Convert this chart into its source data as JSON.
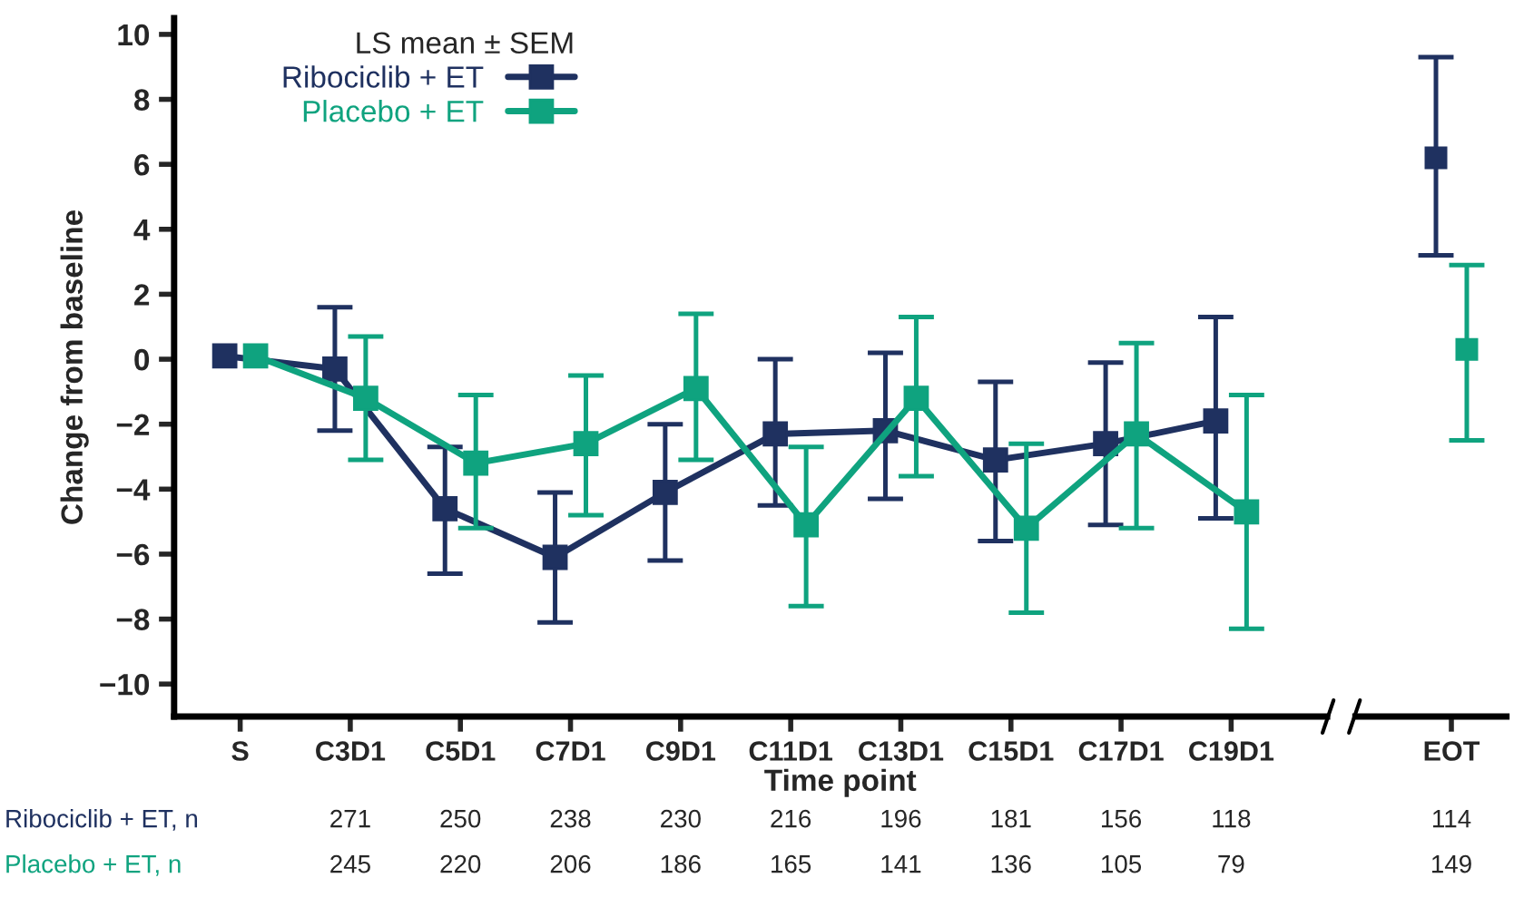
{
  "chart_data": {
    "type": "line",
    "ylabel": "Change from baseline",
    "xlabel": "Time point",
    "legend_title": "LS mean ± SEM",
    "categories": [
      "S",
      "C3D1",
      "C5D1",
      "C7D1",
      "C9D1",
      "C11D1",
      "C13D1",
      "C15D1",
      "C17D1",
      "C19D1",
      "EOT"
    ],
    "series": [
      {
        "name": "Ribociclib + ET",
        "color": "#1f3160",
        "values": [
          0.1,
          -0.3,
          -4.6,
          -6.1,
          -4.1,
          -2.3,
          -2.2,
          -3.1,
          -2.6,
          -1.9,
          null
        ],
        "errors": [
          null,
          [
            -2.2,
            1.6
          ],
          [
            -6.6,
            -2.7
          ],
          [
            -8.1,
            -4.1
          ],
          [
            -6.2,
            -2.0
          ],
          [
            -4.5,
            0.0
          ],
          [
            -4.3,
            0.2
          ],
          [
            -5.6,
            -0.7
          ],
          [
            -5.1,
            -0.1
          ],
          [
            -4.9,
            1.3
          ],
          null
        ]
      },
      {
        "name": "Placebo + ET",
        "color": "#0fa37f",
        "values": [
          0.1,
          -1.2,
          -3.2,
          -2.6,
          -0.9,
          -5.1,
          -1.2,
          -5.2,
          -2.3,
          -4.7,
          null
        ],
        "errors": [
          null,
          [
            -3.1,
            0.7
          ],
          [
            -5.2,
            -1.1
          ],
          [
            -4.8,
            -0.5
          ],
          [
            -3.1,
            1.4
          ],
          [
            -7.6,
            -2.7
          ],
          [
            -3.6,
            1.3
          ],
          [
            -7.8,
            -2.6
          ],
          [
            -5.2,
            0.5
          ],
          [
            -8.3,
            -1.1
          ],
          null
        ]
      },
      {
        "type": "scatter",
        "color": "#1f3160",
        "values": [
          null,
          null,
          null,
          null,
          null,
          null,
          null,
          null,
          null,
          null,
          6.2
        ],
        "errors": [
          null,
          null,
          null,
          null,
          null,
          null,
          null,
          null,
          null,
          null,
          [
            3.2,
            9.3
          ]
        ]
      },
      {
        "type": "scatter",
        "color": "#0fa37f",
        "values": [
          null,
          null,
          null,
          null,
          null,
          null,
          null,
          null,
          null,
          null,
          0.3
        ],
        "errors": [
          null,
          null,
          null,
          null,
          null,
          null,
          null,
          null,
          null,
          null,
          [
            -2.5,
            2.9
          ]
        ]
      }
    ],
    "ylim": [
      -11,
      10.5
    ],
    "yticks": [
      {
        "value": -10,
        "label": "−10"
      },
      {
        "value": -8,
        "label": "−8"
      },
      {
        "value": -6,
        "label": "−6"
      },
      {
        "value": -4,
        "label": "−4"
      },
      {
        "value": -2,
        "label": "−2"
      },
      0,
      2,
      4,
      6,
      8,
      10
    ],
    "marker": "square",
    "line_style": "solid",
    "grid": false,
    "legend": "top left",
    "annotations": [
      "Ribociclib + ET, n",
      "271",
      "250",
      "238",
      "230",
      "216",
      "196",
      "181",
      "156",
      "118",
      "114",
      "Placebo + ET, n",
      "245",
      "220",
      "206",
      "186",
      "165",
      "141",
      "136",
      "105",
      "79",
      "149"
    ]
  }
}
